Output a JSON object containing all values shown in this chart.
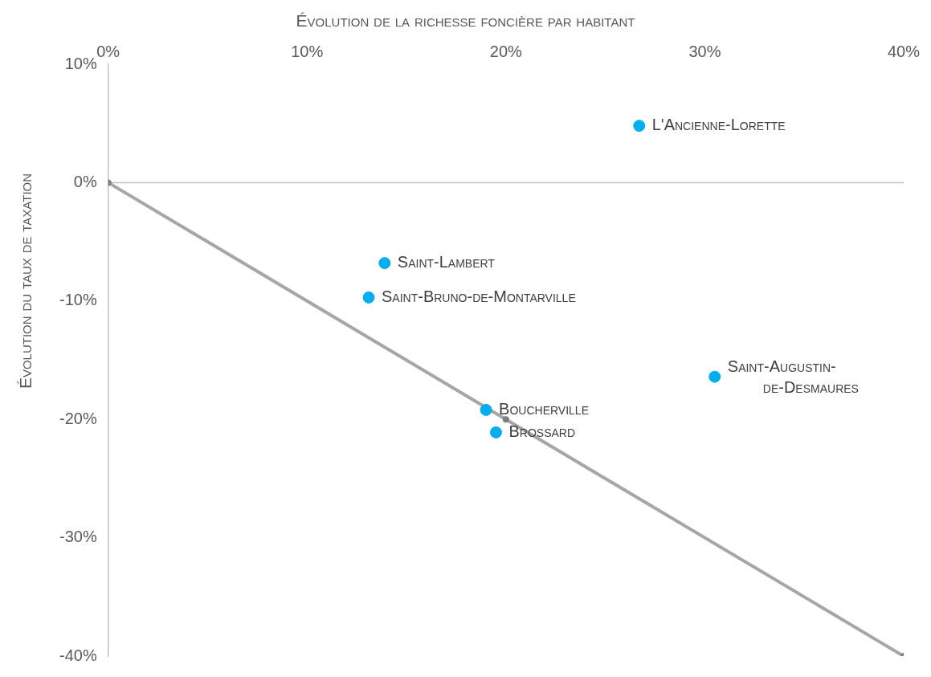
{
  "chart_data": {
    "type": "scatter",
    "xlabel": "Évolution de la richesse foncière par habitant",
    "ylabel": "Évolution du taux de taxation",
    "xlim": [
      0,
      40
    ],
    "xticks": [
      {
        "value": 0,
        "label": "0%"
      },
      {
        "value": 10,
        "label": "10%"
      },
      {
        "value": 20,
        "label": "20%"
      },
      {
        "value": 30,
        "label": "30%"
      },
      {
        "value": 40,
        "label": "40%"
      }
    ],
    "ylim": [
      -40,
      10
    ],
    "yticks": [
      {
        "value": -40,
        "label": "-40%"
      },
      {
        "value": -30,
        "label": "-30%"
      },
      {
        "value": -20,
        "label": "-20%"
      },
      {
        "value": -10,
        "label": "-10%"
      },
      {
        "value": 0,
        "label": "0%"
      },
      {
        "value": 10,
        "label": "10%"
      }
    ],
    "grid": false,
    "legend": false,
    "marker": "circle",
    "ref_lines": [
      {
        "axis": "y",
        "value": 0,
        "color": "#bfbfbf"
      }
    ],
    "series": [
      {
        "type": "line",
        "color": "#a6a6a6",
        "x": [
          0,
          20,
          40
        ],
        "values": [
          0,
          -20,
          -40
        ]
      },
      {
        "name": "L'Ancienne-Lorette",
        "color": "#00aeef",
        "x": [
          26.7
        ],
        "values": [
          4.8
        ]
      },
      {
        "name": "Saint-Lambert",
        "color": "#00aeef",
        "x": [
          13.9
        ],
        "values": [
          -6.8
        ]
      },
      {
        "name": "Saint-Bruno-de-Montarville",
        "color": "#00aeef",
        "x": [
          13.1
        ],
        "values": [
          -9.7
        ]
      },
      {
        "name": "Saint-Augustin-de-Desmaures",
        "color": "#00aeef",
        "x": [
          30.5
        ],
        "values": [
          -16.4
        ]
      },
      {
        "name": "Boucherville",
        "color": "#00aeef",
        "x": [
          19.0
        ],
        "values": [
          -19.2
        ]
      },
      {
        "name": "Brossard",
        "color": "#00aeef",
        "x": [
          19.5
        ],
        "values": [
          -21.1
        ]
      }
    ]
  }
}
